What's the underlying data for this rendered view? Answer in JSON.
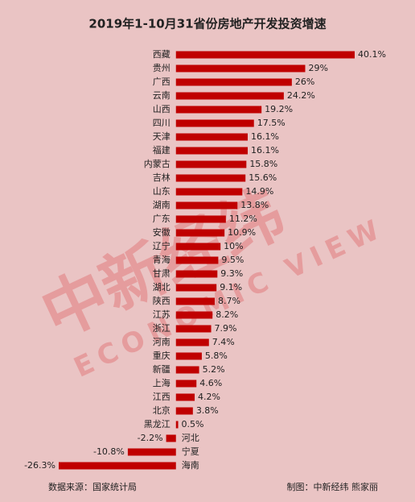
{
  "chart_data": {
    "type": "bar",
    "orientation": "horizontal",
    "title": "2019年1-10月31省份房地产开发投资增速",
    "categories": [
      "西藏",
      "贵州",
      "广西",
      "云南",
      "山西",
      "四川",
      "天津",
      "福建",
      "内蒙古",
      "吉林",
      "山东",
      "湖南",
      "广东",
      "安徽",
      "辽宁",
      "青海",
      "甘肃",
      "湖北",
      "陕西",
      "江苏",
      "浙江",
      "河南",
      "重庆",
      "新疆",
      "上海",
      "江西",
      "北京",
      "黑龙江",
      "河北",
      "宁夏",
      "海南"
    ],
    "values": [
      40.1,
      29,
      26,
      24.2,
      19.2,
      17.5,
      16.1,
      16.1,
      15.8,
      15.6,
      14.9,
      13.8,
      11.2,
      10.9,
      10,
      9.5,
      9.3,
      9.1,
      8.7,
      8.2,
      7.9,
      7.4,
      5.8,
      5.2,
      4.6,
      4.2,
      3.8,
      0.5,
      -2.2,
      -10.8,
      -26.3
    ],
    "value_labels": [
      "40.1%",
      "29%",
      "26%",
      "24.2%",
      "19.2%",
      "17.5%",
      "16.1%",
      "16.1%",
      "15.8%",
      "15.6%",
      "14.9%",
      "13.8%",
      "11.2%",
      "10.9%",
      "10%",
      "9.5%",
      "9.3%",
      "9.1%",
      "8.7%",
      "8.2%",
      "7.9%",
      "7.4%",
      "5.8%",
      "5.2%",
      "4.6%",
      "4.2%",
      "3.8%",
      "0.5%",
      "-2.2%",
      "-10.8%",
      "-26.3%"
    ],
    "color": "#c00000",
    "source": "数据来源：国家统计局",
    "credit": "制图：中新经纬 熊家丽",
    "watermark": {
      "cn": "中新经纬",
      "en": "ECONOMIC VIEW"
    }
  }
}
